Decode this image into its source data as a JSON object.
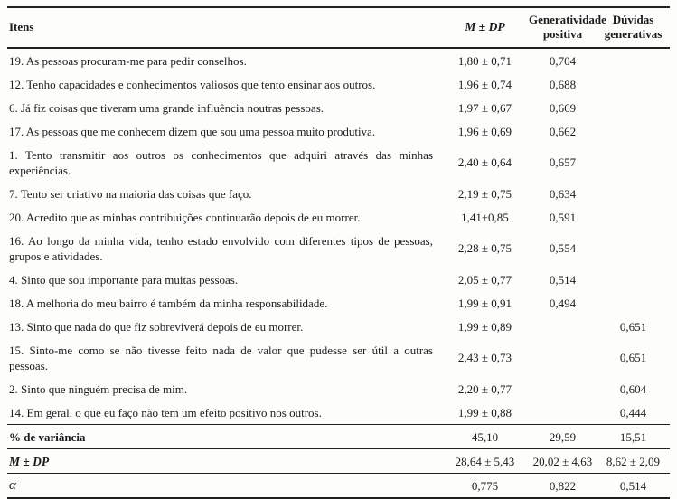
{
  "colors": {
    "text": "#1c1c1c",
    "rule": "#1f1f1f",
    "background": "#fdfdfc"
  },
  "table": {
    "headers": {
      "items": "Itens",
      "m_dp": "M ± DP",
      "gen_pos": [
        "Generatividade",
        "positiva"
      ],
      "duv_gen": [
        "Dúvidas",
        "generativas"
      ]
    },
    "rows": [
      {
        "item": "19. As pessoas procuram-me para pedir conselhos.",
        "m_dp": "1,80 ± 0,71",
        "gen_pos": "0,704",
        "duv_gen": ""
      },
      {
        "item": "12. Tenho capacidades e conhecimentos valiosos que tento ensinar aos outros.",
        "m_dp": "1,96 ± 0,74",
        "gen_pos": "0,688",
        "duv_gen": ""
      },
      {
        "item": "6. Já fiz coisas que tiveram uma grande influência noutras pessoas.",
        "m_dp": "1,97 ± 0,67",
        "gen_pos": "0,669",
        "duv_gen": ""
      },
      {
        "item": "17. As pessoas que me conhecem dizem que sou uma pessoa muito produtiva.",
        "m_dp": "1,96 ± 0,69",
        "gen_pos": "0,662",
        "duv_gen": ""
      },
      {
        "item": "1. Tento transmitir aos outros os conhecimentos que adquiri através das minhas experiências.",
        "m_dp": "2,40 ± 0,64",
        "gen_pos": "0,657",
        "duv_gen": ""
      },
      {
        "item": "7. Tento ser criativo na maioria das coisas que faço.",
        "m_dp": "2,19 ± 0,75",
        "gen_pos": "0,634",
        "duv_gen": ""
      },
      {
        "item": "20. Acredito que as minhas contribuições continuarão depois de eu morrer.",
        "m_dp": "1,41±0,85",
        "gen_pos": "0,591",
        "duv_gen": ""
      },
      {
        "item": "16. Ao longo da minha vida, tenho estado envolvido com diferentes tipos de pessoas, grupos e atividades.",
        "m_dp": "2,28 ± 0,75",
        "gen_pos": "0,554",
        "duv_gen": ""
      },
      {
        "item": "4. Sinto que sou importante para muitas pessoas.",
        "m_dp": "2,05 ± 0,77",
        "gen_pos": "0,514",
        "duv_gen": ""
      },
      {
        "item": "18. A melhoria do meu bairro é também da minha responsabilidade.",
        "m_dp": "1,99 ± 0,91",
        "gen_pos": "0,494",
        "duv_gen": ""
      },
      {
        "item": "13. Sinto que nada do que fiz sobreviverá depois de eu morrer.",
        "m_dp": "1,99 ± 0,89",
        "gen_pos": "",
        "duv_gen": "0,651"
      },
      {
        "item": "15. Sinto-me como se não tivesse feito nada de valor que pudesse ser útil a outras pessoas.",
        "m_dp": "2,43 ± 0,73",
        "gen_pos": "",
        "duv_gen": "0,651"
      },
      {
        "item": "2. Sinto que ninguém precisa de mim.",
        "m_dp": "2,20 ± 0,77",
        "gen_pos": "",
        "duv_gen": "0,604"
      },
      {
        "item": "14. Em geral. o que eu faço não tem um efeito positivo nos outros.",
        "m_dp": "1,99 ± 0,88",
        "gen_pos": "",
        "duv_gen": "0,444"
      }
    ],
    "footer": [
      {
        "label": "% de variância",
        "m_dp": "45,10",
        "gen_pos": "29,59",
        "duv_gen": "15,51",
        "style": "bold"
      },
      {
        "label": "M ± DP",
        "m_dp": "28,64 ± 5,43",
        "gen_pos": "20,02 ± 4,63",
        "duv_gen": "8,62 ± 2,09",
        "style": "bold-italic"
      },
      {
        "label": "α",
        "m_dp": "0,775",
        "gen_pos": "0,822",
        "duv_gen": "0,514",
        "style": "italic"
      }
    ]
  }
}
